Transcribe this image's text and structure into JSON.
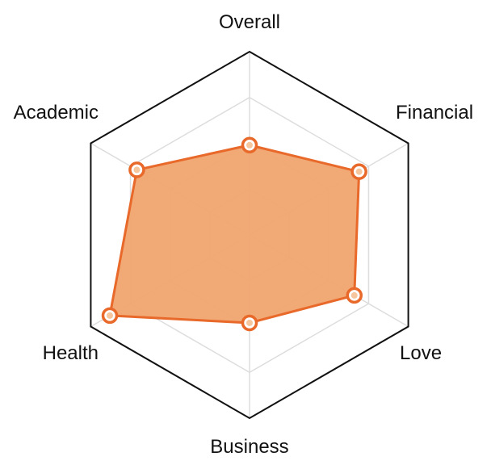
{
  "chart_data": {
    "type": "radar",
    "axes": [
      "Overall",
      "Financial",
      "Love",
      "Business",
      "Health",
      "Academic"
    ],
    "series": [
      {
        "values": [
          0.49,
          0.69,
          0.66,
          0.48,
          0.88,
          0.71
        ]
      }
    ],
    "range": [
      0,
      1
    ],
    "grid_levels": 4,
    "grid": true,
    "legend": "none",
    "colors": {
      "outer_ring": "#111111",
      "grid": "#dddddd",
      "fill": "#f0a46f",
      "stroke": "#e8692a",
      "marker_fill": "#ffffff",
      "marker_dot": "#f6c79f",
      "label": "#111111"
    }
  }
}
